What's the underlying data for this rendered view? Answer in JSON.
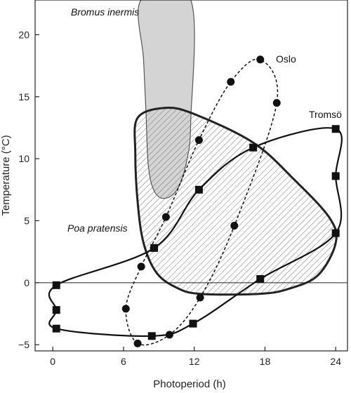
{
  "chart_data": {
    "type": "scatter",
    "xlabel": "Photoperiod (h)",
    "ylabel": "Temperature (°C)",
    "xlim": [
      -1.5,
      25
    ],
    "ylim": [
      -5.5,
      22.8
    ],
    "x_ticks": [
      0,
      6,
      12,
      18,
      24
    ],
    "y_ticks": [
      -5,
      0,
      5,
      10,
      15,
      20
    ],
    "tick_labels_x": [
      "0",
      "6",
      "12",
      "18",
      "24"
    ],
    "tick_labels_y": [
      "−5",
      "0",
      "5",
      "10",
      "15",
      "20"
    ],
    "zero_line": true,
    "grid": false,
    "annotations": [
      "Bromus inermis",
      "Poa pratensis",
      "Oslo",
      "Tromsö"
    ],
    "regions": [
      {
        "label": "Bromus inermis",
        "fill": "#cccccc",
        "hatch": false,
        "outline": [
          [
            7.5,
            22.8
          ],
          [
            11.7,
            22.8
          ],
          [
            11.7,
            13.0
          ],
          [
            11.4,
            10.0
          ],
          [
            10.6,
            7.6
          ],
          [
            9.5,
            6.8
          ],
          [
            8.6,
            7.4
          ],
          [
            8.1,
            9.5
          ],
          [
            7.9,
            14.0
          ],
          [
            7.7,
            18.0
          ],
          [
            7.5,
            22.8
          ]
        ]
      },
      {
        "label": "Poa pratensis",
        "fill": "none",
        "hatch": true,
        "outline": [
          [
            7.2,
            13.3
          ],
          [
            9.5,
            14.1
          ],
          [
            12.0,
            13.6
          ],
          [
            17.0,
            11.3
          ],
          [
            20.5,
            8.3
          ],
          [
            23.5,
            5.2
          ],
          [
            24.0,
            3.2
          ],
          [
            22.5,
            0.6
          ],
          [
            20.0,
            -0.5
          ],
          [
            17.5,
            -0.9
          ],
          [
            12.5,
            -0.9
          ],
          [
            10.5,
            -0.4
          ],
          [
            8.8,
            0.8
          ],
          [
            7.7,
            3.2
          ],
          [
            7.2,
            6.5
          ],
          [
            7.0,
            10.5
          ],
          [
            7.2,
            13.3
          ]
        ]
      }
    ],
    "series": [
      {
        "name": "Oslo",
        "marker": "circle",
        "line": "dashed",
        "points": [
          {
            "x": 7.2,
            "y": -4.9
          },
          {
            "x": 6.2,
            "y": -2.1
          },
          {
            "x": 7.5,
            "y": 1.3
          },
          {
            "x": 9.6,
            "y": 5.3
          },
          {
            "x": 12.4,
            "y": 11.5
          },
          {
            "x": 15.1,
            "y": 16.2
          },
          {
            "x": 17.6,
            "y": 18.0
          },
          {
            "x": 19.0,
            "y": 14.5
          },
          {
            "x": 15.4,
            "y": 4.6
          },
          {
            "x": 12.5,
            "y": -1.2
          },
          {
            "x": 9.9,
            "y": -4.2
          },
          {
            "x": 7.2,
            "y": -4.9
          }
        ]
      },
      {
        "name": "Tromsö",
        "marker": "square",
        "line": "solid",
        "points": [
          {
            "x": 0.3,
            "y": -3.7
          },
          {
            "x": 0.3,
            "y": -2.2
          },
          {
            "x": 0.3,
            "y": -0.2
          },
          {
            "x": 8.6,
            "y": 2.8
          },
          {
            "x": 12.4,
            "y": 7.5
          },
          {
            "x": 17.0,
            "y": 10.9
          },
          {
            "x": 24.0,
            "y": 12.4
          },
          {
            "x": 24.0,
            "y": 8.6
          },
          {
            "x": 24.0,
            "y": 4.0
          },
          {
            "x": 17.6,
            "y": 0.3
          },
          {
            "x": 11.9,
            "y": -3.3
          },
          {
            "x": 8.4,
            "y": -4.3
          },
          {
            "x": 0.3,
            "y": -3.7
          }
        ]
      }
    ]
  }
}
